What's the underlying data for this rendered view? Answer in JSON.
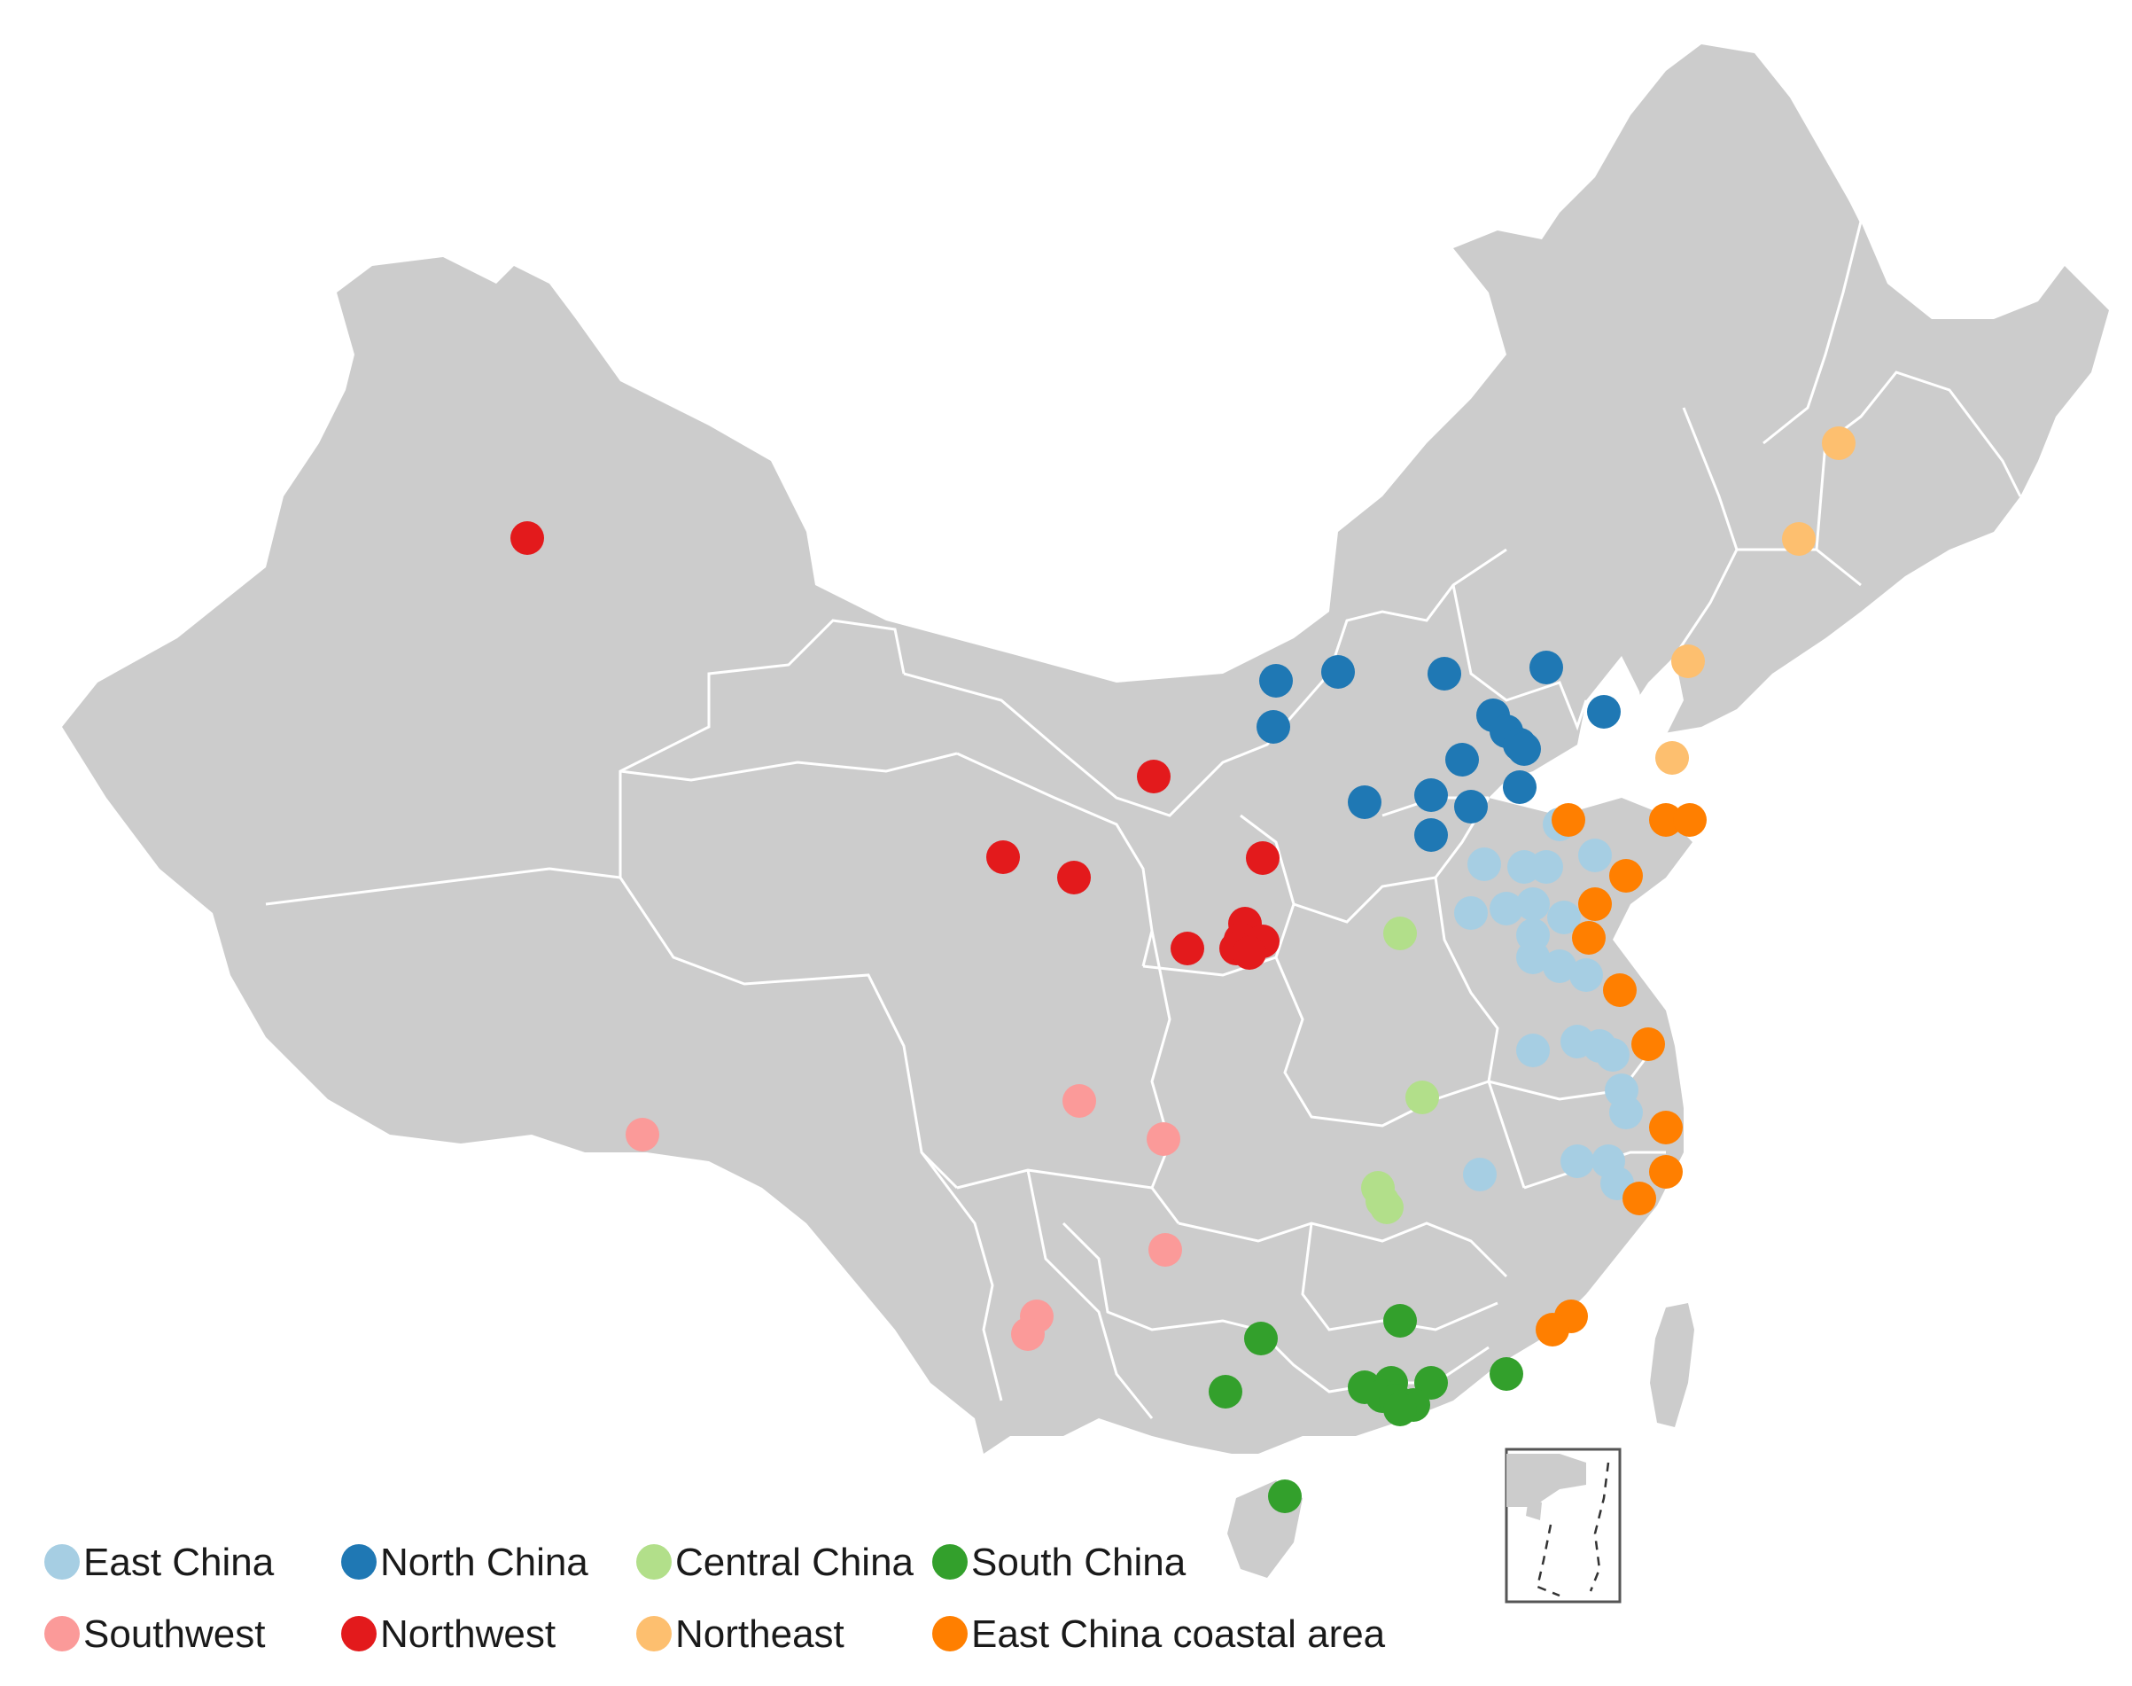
{
  "map": {
    "land_color": "#cccccc",
    "border_color": "#ffffff",
    "sea_color": "#ffffff",
    "inset_label": "South China Sea islands inset"
  },
  "legend": [
    {
      "key": "east",
      "label": "East China",
      "color": "#a6cee3"
    },
    {
      "key": "north",
      "label": "North China",
      "color": "#1f78b4"
    },
    {
      "key": "central",
      "label": "Central China",
      "color": "#b2df8a"
    },
    {
      "key": "south",
      "label": "South China",
      "color": "#33a02c"
    },
    {
      "key": "southwest",
      "label": "Southwest",
      "color": "#fb9a99"
    },
    {
      "key": "northwest",
      "label": "Northwest",
      "color": "#e31a1c"
    },
    {
      "key": "northeast",
      "label": "Northeast",
      "color": "#fdbf6f"
    },
    {
      "key": "coastal",
      "label": "East China coastal area",
      "color": "#ff7f00"
    }
  ]
}
